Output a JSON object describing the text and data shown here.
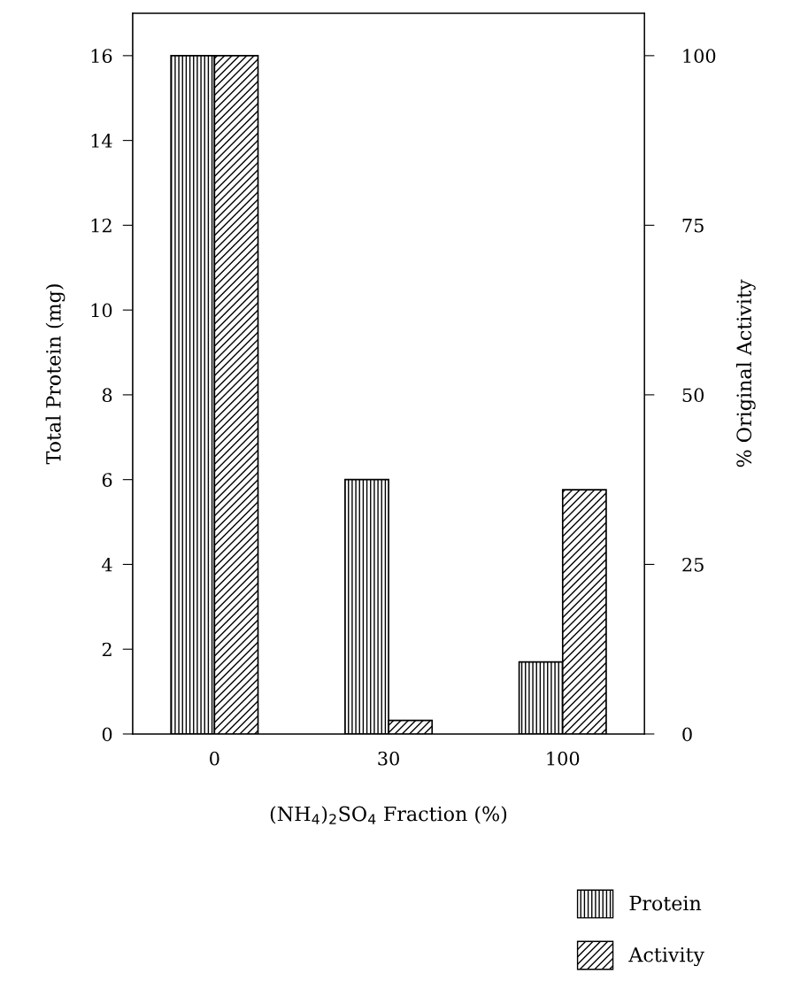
{
  "chart_data": {
    "type": "bar",
    "xlabel": "(NH$_{4}$)$_{2}$SO$_{4}$ Fraction (%)",
    "ylabel": "Total Protein (mg)",
    "y2label": "% Original Activity",
    "categories": [
      "0",
      "30",
      "100"
    ],
    "series": [
      {
        "name": "Protein",
        "color": "#000000",
        "values": [
          16,
          6,
          1.7
        ]
      },
      {
        "name": "Activity",
        "color": "#000000",
        "values": [
          100,
          2,
          36
        ],
        "axis": "y2"
      }
    ],
    "ylim": [
      0,
      17
    ],
    "yticks": [
      0,
      2,
      4,
      6,
      8,
      10,
      12,
      14,
      16
    ],
    "y2lim": [
      0,
      106.25
    ],
    "y2ticks": [
      0,
      25,
      50,
      75,
      100
    ],
    "grid": false,
    "legend": "bottom right"
  }
}
